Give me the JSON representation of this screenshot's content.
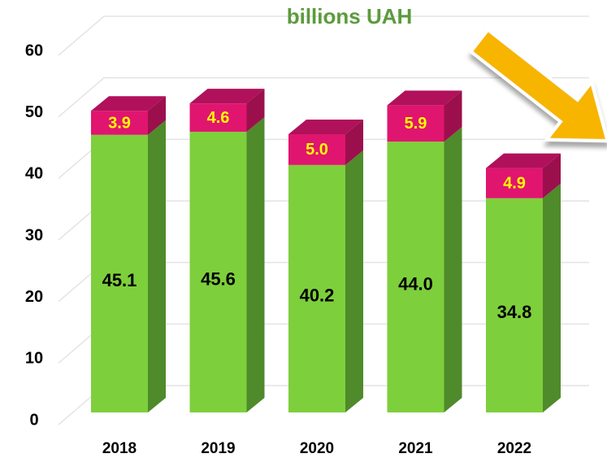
{
  "chart_data": {
    "type": "bar",
    "stacked": true,
    "title": "billions UAH",
    "categories": [
      "2018",
      "2019",
      "2020",
      "2021",
      "2022"
    ],
    "series": [
      {
        "color": "#7ecf3c",
        "values": [
          45.1,
          45.6,
          40.2,
          44.0,
          34.8
        ],
        "value_labels": [
          "45.1",
          "45.6",
          "40.2",
          "44.0",
          "34.8"
        ]
      },
      {
        "color": "#e0156f",
        "values": [
          3.9,
          4.6,
          5.0,
          5.9,
          4.9
        ],
        "value_labels": [
          "3.9",
          "4.6",
          "5.0",
          "5.9",
          "4.9"
        ]
      }
    ],
    "ylim": [
      0,
      60
    ],
    "yticks": [
      0,
      10,
      20,
      30,
      40,
      50,
      60
    ],
    "grid": true
  }
}
